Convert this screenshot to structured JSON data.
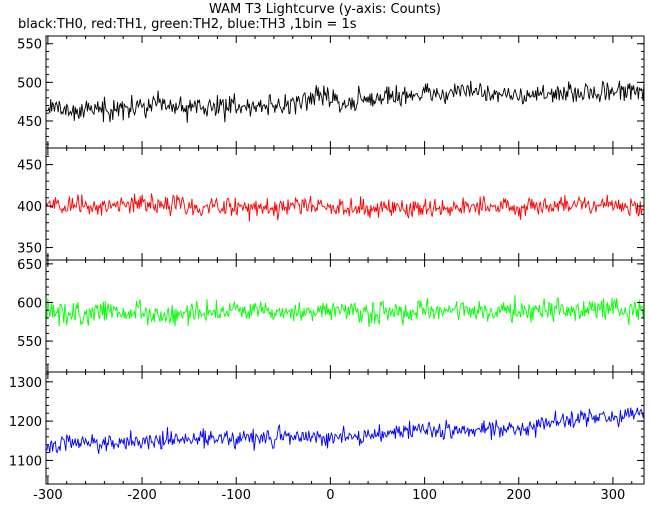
{
  "chart_data": {
    "type": "line",
    "title": "WAM T3 Lightcurve (y-axis: Counts)",
    "subtitle": "black:TH0, red:TH1, green:TH2, blue:TH3 ,1bin = 1s",
    "xlabel": "",
    "ylabel": "",
    "xlim": [
      -302,
      333
    ],
    "x_ticks": [
      -300,
      -200,
      -100,
      0,
      100,
      200,
      300
    ],
    "panels": [
      {
        "name": "TH0",
        "color": "#000000",
        "ylim": [
          415,
          560
        ],
        "y_ticks": [
          450,
          500,
          550
        ],
        "noise_amplitude": 30,
        "series": [
          {
            "x": -300,
            "y": 465
          },
          {
            "x": -250,
            "y": 465
          },
          {
            "x": -200,
            "y": 468
          },
          {
            "x": -150,
            "y": 468
          },
          {
            "x": -100,
            "y": 470
          },
          {
            "x": -50,
            "y": 470
          },
          {
            "x": 0,
            "y": 485
          },
          {
            "x": 10,
            "y": 470
          },
          {
            "x": 50,
            "y": 480
          },
          {
            "x": 100,
            "y": 485
          },
          {
            "x": 150,
            "y": 490
          },
          {
            "x": 200,
            "y": 482
          },
          {
            "x": 250,
            "y": 485
          },
          {
            "x": 300,
            "y": 488
          },
          {
            "x": 330,
            "y": 490
          }
        ]
      },
      {
        "name": "TH1",
        "color": "#ff0000",
        "ylim": [
          335,
          470
        ],
        "y_ticks": [
          350,
          400,
          450
        ],
        "noise_amplitude": 26,
        "series": [
          {
            "x": -300,
            "y": 400
          },
          {
            "x": -250,
            "y": 400
          },
          {
            "x": -200,
            "y": 402
          },
          {
            "x": -150,
            "y": 400
          },
          {
            "x": -100,
            "y": 398
          },
          {
            "x": -50,
            "y": 400
          },
          {
            "x": 0,
            "y": 400
          },
          {
            "x": 50,
            "y": 398
          },
          {
            "x": 100,
            "y": 398
          },
          {
            "x": 150,
            "y": 400
          },
          {
            "x": 200,
            "y": 398
          },
          {
            "x": 250,
            "y": 402
          },
          {
            "x": 300,
            "y": 400
          },
          {
            "x": 330,
            "y": 398
          }
        ]
      },
      {
        "name": "TH2",
        "color": "#00ff00",
        "ylim": [
          510,
          655
        ],
        "y_ticks": [
          550,
          600,
          650
        ],
        "noise_amplitude": 32,
        "series": [
          {
            "x": -300,
            "y": 585
          },
          {
            "x": -250,
            "y": 588
          },
          {
            "x": -200,
            "y": 585
          },
          {
            "x": -150,
            "y": 585
          },
          {
            "x": -100,
            "y": 588
          },
          {
            "x": -50,
            "y": 585
          },
          {
            "x": 0,
            "y": 590
          },
          {
            "x": 50,
            "y": 585
          },
          {
            "x": 100,
            "y": 588
          },
          {
            "x": 150,
            "y": 590
          },
          {
            "x": 200,
            "y": 588
          },
          {
            "x": 250,
            "y": 590
          },
          {
            "x": 300,
            "y": 592
          },
          {
            "x": 330,
            "y": 590
          }
        ]
      },
      {
        "name": "TH3",
        "color": "#0000ff",
        "ylim": [
          1040,
          1325
        ],
        "y_ticks": [
          1100,
          1200,
          1300
        ],
        "noise_amplitude": 50,
        "series": [
          {
            "x": -300,
            "y": 1140
          },
          {
            "x": -250,
            "y": 1145
          },
          {
            "x": -200,
            "y": 1150
          },
          {
            "x": -150,
            "y": 1155
          },
          {
            "x": -100,
            "y": 1155
          },
          {
            "x": -50,
            "y": 1160
          },
          {
            "x": 0,
            "y": 1160
          },
          {
            "x": 50,
            "y": 1165
          },
          {
            "x": 100,
            "y": 1180
          },
          {
            "x": 150,
            "y": 1175
          },
          {
            "x": 200,
            "y": 1180
          },
          {
            "x": 250,
            "y": 1205
          },
          {
            "x": 300,
            "y": 1210
          },
          {
            "x": 330,
            "y": 1220
          }
        ]
      }
    ],
    "grid": false,
    "legend": "none"
  }
}
